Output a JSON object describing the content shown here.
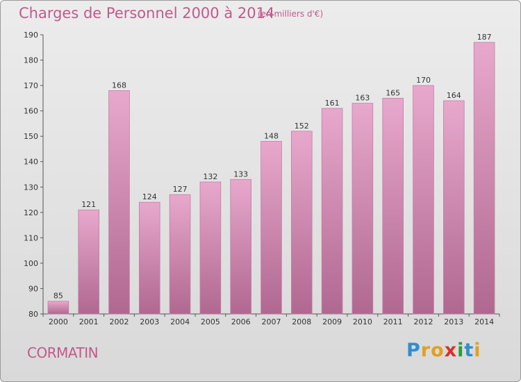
{
  "header": {
    "title": "Charges de Personnel 2000 à 2014",
    "subtitle": "(en milliers d'€)"
  },
  "footer": {
    "town": "CORMATIN",
    "logo_letters": [
      "P",
      "r",
      "o",
      "x",
      "i",
      "t",
      "i"
    ]
  },
  "colors": {
    "bar_top": "#e8a8cc",
    "bar_bottom": "#b06890",
    "title": "#c05a8a"
  },
  "chart_data": {
    "type": "bar",
    "title": "Charges de Personnel 2000 à 2014",
    "categories": [
      "2000",
      "2001",
      "2002",
      "2003",
      "2004",
      "2005",
      "2006",
      "2007",
      "2008",
      "2009",
      "2010",
      "2011",
      "2012",
      "2013",
      "2014"
    ],
    "values": [
      85,
      121,
      168,
      124,
      127,
      132,
      133,
      148,
      152,
      161,
      163,
      165,
      170,
      164,
      187
    ],
    "ylim": [
      80,
      190
    ],
    "yticks": [
      80,
      90,
      100,
      110,
      120,
      130,
      140,
      150,
      160,
      170,
      180,
      190
    ],
    "grid": false,
    "xlabel": "",
    "ylabel": ""
  }
}
